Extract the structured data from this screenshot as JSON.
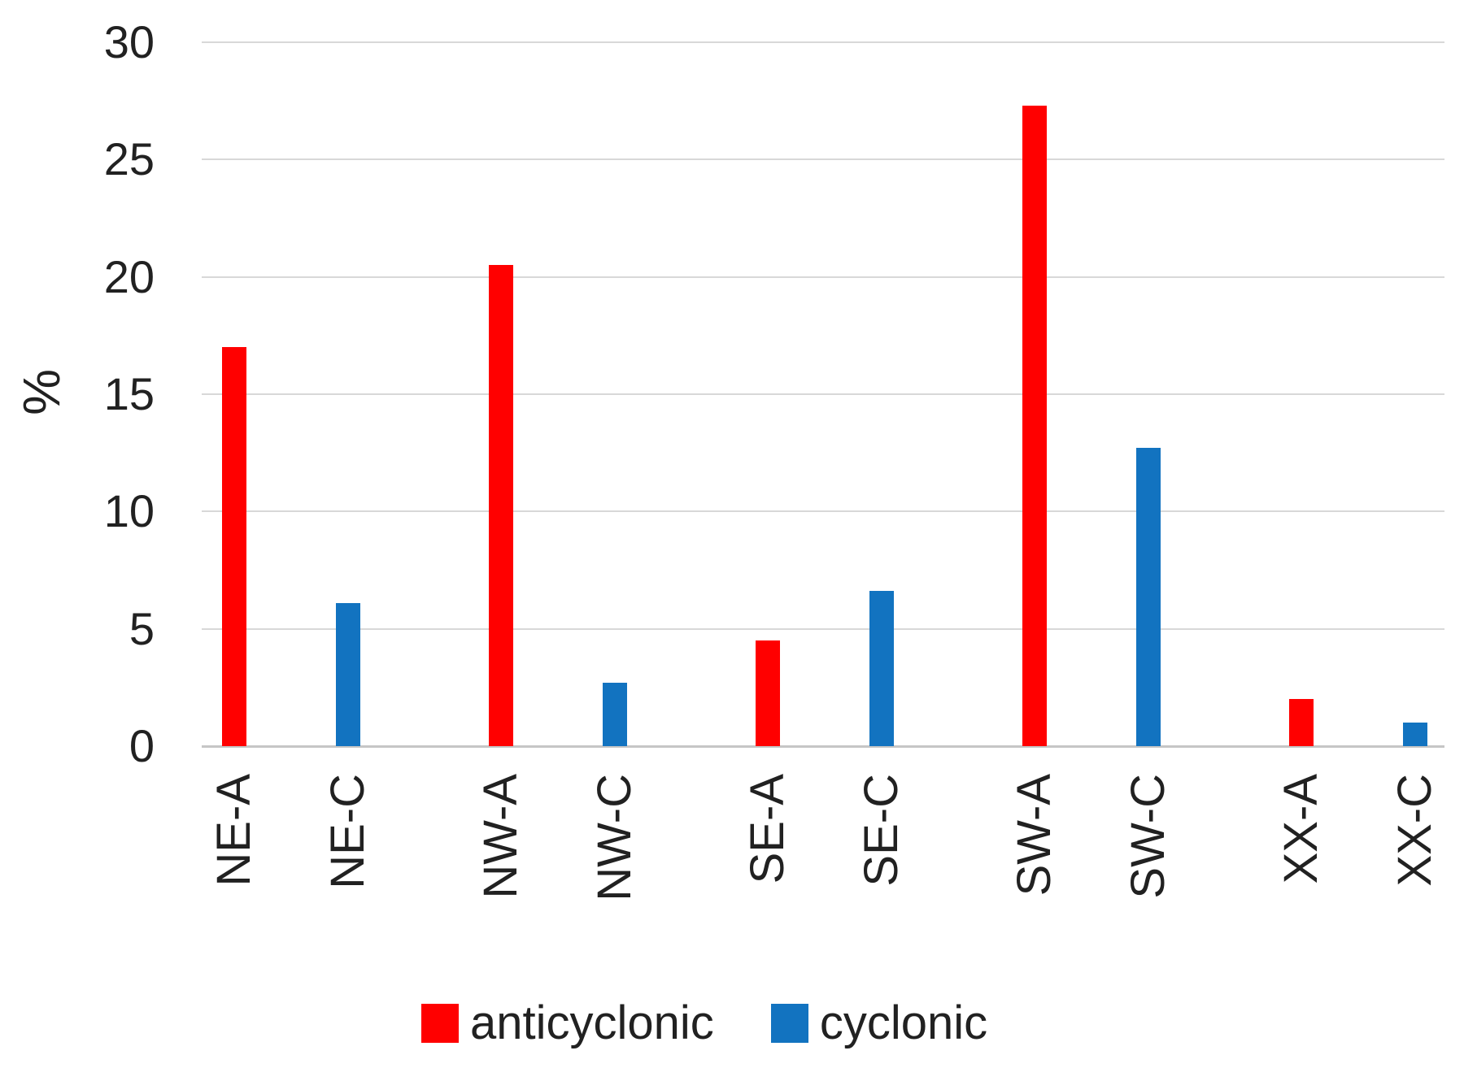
{
  "chart_data": {
    "type": "bar",
    "title": "",
    "xlabel": "",
    "ylabel": "%",
    "ylim": [
      0,
      30
    ],
    "ytick_step": 5,
    "y_ticks": [
      30,
      25,
      20,
      15,
      10,
      5,
      0
    ],
    "grid": true,
    "legend_position": "bottom",
    "categories": [
      "NE-A",
      "NE-C",
      "NW-A",
      "NW-C",
      "SE-A",
      "SE-C",
      "SW-A",
      "SW-C",
      "XX-A",
      "XX-C"
    ],
    "groups": [
      "NE",
      "NW",
      "SE",
      "SW",
      "XX"
    ],
    "series": [
      {
        "name": "anticyclonic",
        "color": "#FF0000",
        "values": [
          17.0,
          20.5,
          4.5,
          27.3,
          2.0
        ]
      },
      {
        "name": "cyclonic",
        "color": "#1273C0",
        "values": [
          6.1,
          2.7,
          6.6,
          12.7,
          1.0
        ]
      }
    ],
    "bars": [
      {
        "label": "NE-A",
        "series": "anticyclonic",
        "value": 17.0
      },
      {
        "label": "NE-C",
        "series": "cyclonic",
        "value": 6.1
      },
      {
        "label": "NW-A",
        "series": "anticyclonic",
        "value": 20.5
      },
      {
        "label": "NW-C",
        "series": "cyclonic",
        "value": 2.7
      },
      {
        "label": "SE-A",
        "series": "anticyclonic",
        "value": 4.5
      },
      {
        "label": "SE-C",
        "series": "cyclonic",
        "value": 6.6
      },
      {
        "label": "SW-A",
        "series": "anticyclonic",
        "value": 27.3
      },
      {
        "label": "SW-C",
        "series": "cyclonic",
        "value": 12.7
      },
      {
        "label": "XX-A",
        "series": "anticyclonic",
        "value": 2.0
      },
      {
        "label": "XX-C",
        "series": "cyclonic",
        "value": 1.0
      }
    ],
    "legend": {
      "items": [
        {
          "label": "anticyclonic",
          "color": "#FF0000"
        },
        {
          "label": "cyclonic",
          "color": "#1273C0"
        }
      ]
    }
  },
  "colors": {
    "anticyclonic": "#FF0000",
    "cyclonic": "#1273C0",
    "gridline": "#D8D8D8",
    "axis_line": "#C6C6C6",
    "text": "#212121",
    "background": "#FFFFFF"
  }
}
